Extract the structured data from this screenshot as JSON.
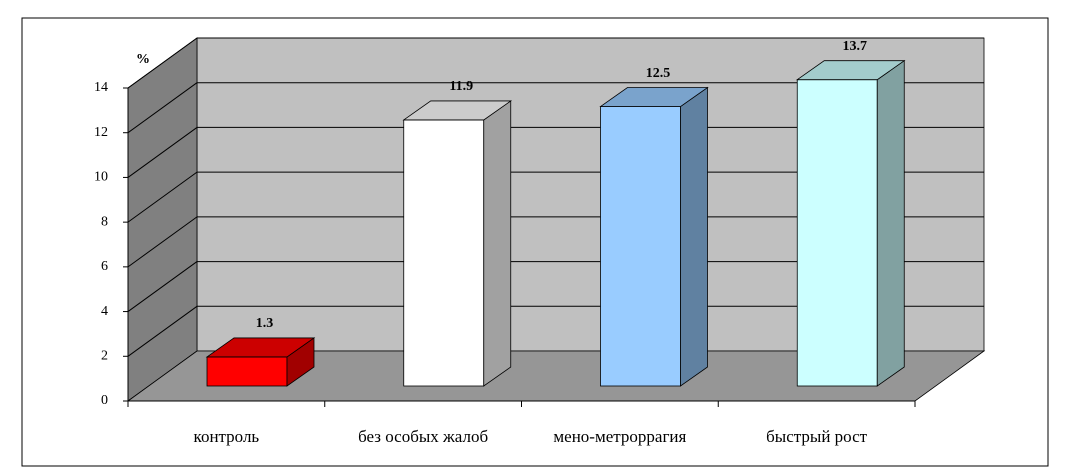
{
  "chart_data": {
    "type": "bar3d",
    "y_label": "%",
    "categories": [
      "контроль",
      "без особых жалоб",
      "мено-метроррагия",
      "быстрый рост"
    ],
    "values": [
      1.3,
      11.9,
      12.5,
      13.7
    ],
    "colors": [
      "#ff0000",
      "#ffffff",
      "#99ccff",
      "#ccffff"
    ],
    "ylim": [
      0,
      14
    ],
    "yticks": [
      0,
      2,
      4,
      6,
      8,
      10,
      12,
      14
    ],
    "grid": true
  }
}
